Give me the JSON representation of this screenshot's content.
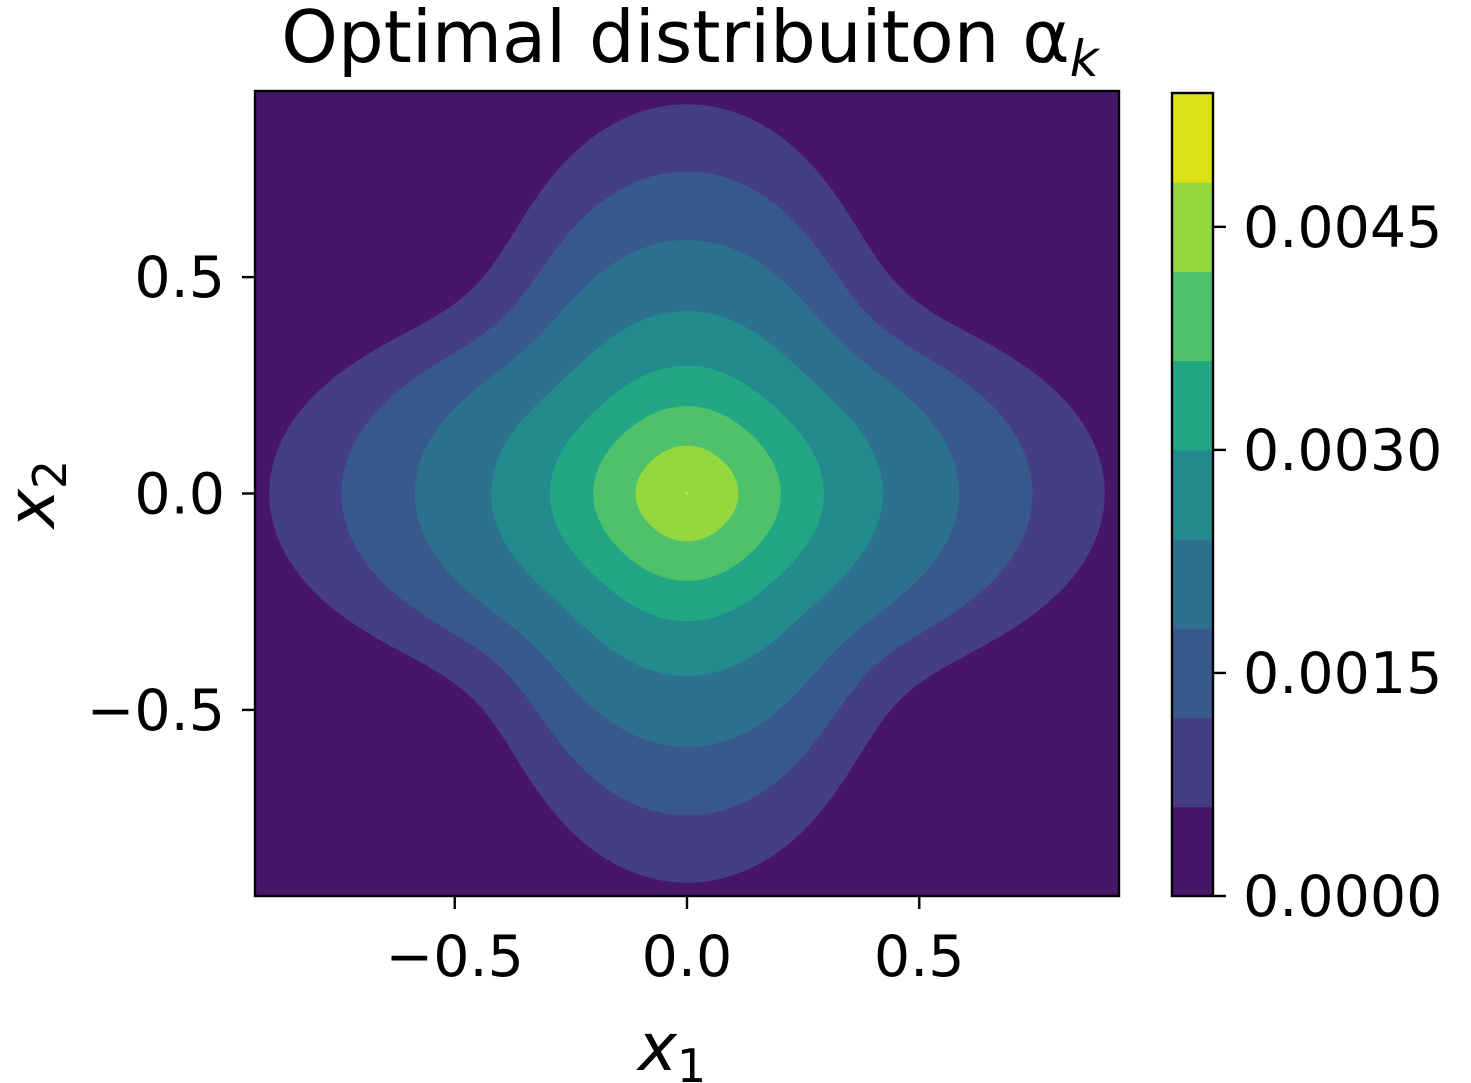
{
  "chart_data": {
    "type": "heatmap",
    "subtype": "filled-contour",
    "colormap": "viridis",
    "title": "Optimal distribuiton α",
    "title_subscript": "k",
    "xlabel": "x",
    "xlabel_subscript": "1",
    "ylabel": "x",
    "ylabel_subscript": "2",
    "xlim": [
      -0.93,
      0.93
    ],
    "ylim": [
      -0.93,
      0.93
    ],
    "xticks": [
      -0.5,
      0.0,
      0.5
    ],
    "xtick_labels": [
      "−0.5",
      "0.0",
      "0.5"
    ],
    "yticks": [
      -0.5,
      0.0,
      0.5
    ],
    "ytick_labels": [
      "−0.5",
      "0.0",
      "0.5"
    ],
    "grid": false,
    "description_shape": "four-lobed (cross-shaped) distribution centered at origin, peak at (0,0)",
    "peak": {
      "x": 0.0,
      "y": 0.0,
      "value": 0.0049
    },
    "contour_levels": [
      0.0,
      0.0006,
      0.0012,
      0.0018,
      0.0024,
      0.003,
      0.0036,
      0.0042,
      0.0048,
      0.0054
    ],
    "level_colors": [
      "#481668",
      "#453e86",
      "#38598c",
      "#2d718e",
      "#238a8d",
      "#22a785",
      "#4fc16b",
      "#94d840",
      "#dae21a"
    ],
    "level_half_widths": [
      0.84,
      0.7,
      0.56,
      0.41,
      0.29,
      0.2,
      0.11
    ],
    "level_lobe_strength": [
      0.32,
      0.28,
      0.2,
      0.12,
      0.07,
      0.04,
      0.03
    ],
    "colorbar": {
      "range": [
        0.0,
        0.0054
      ],
      "ticks": [
        0.0,
        0.0015,
        0.003,
        0.0045
      ],
      "tick_labels": [
        "0.0000",
        "0.0015",
        "0.0030",
        "0.0045"
      ]
    }
  }
}
